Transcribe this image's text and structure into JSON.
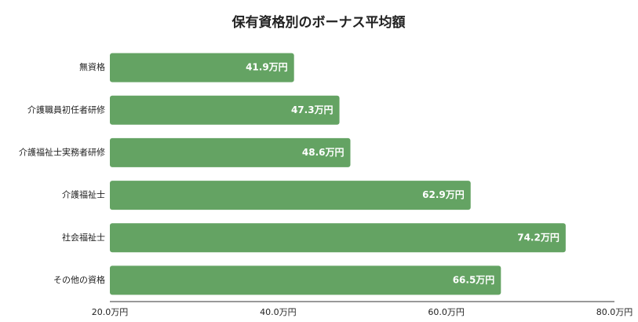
{
  "chart_data": {
    "type": "bar",
    "orientation": "horizontal",
    "title": "保有資格別のボーナス平均額",
    "categories": [
      "無資格",
      "介護職員初任者研修",
      "介護福祉士実務者研修",
      "介護福祉士",
      "社会福祉士",
      "その他の資格"
    ],
    "values": [
      41.9,
      47.3,
      48.6,
      62.9,
      74.2,
      66.5
    ],
    "value_labels": [
      "41.9万円",
      "47.3万円",
      "48.6万円",
      "62.9万円",
      "74.2万円",
      "66.5万円"
    ],
    "color": "#64a363",
    "xlim": [
      20,
      80
    ],
    "xticks": [
      {
        "value": 20,
        "label": "20.0万円"
      },
      {
        "value": 40,
        "label": "40.0万円"
      },
      {
        "value": 60,
        "label": "60.0万円"
      },
      {
        "value": 80,
        "label": "80.0万円"
      }
    ],
    "grid": false
  }
}
